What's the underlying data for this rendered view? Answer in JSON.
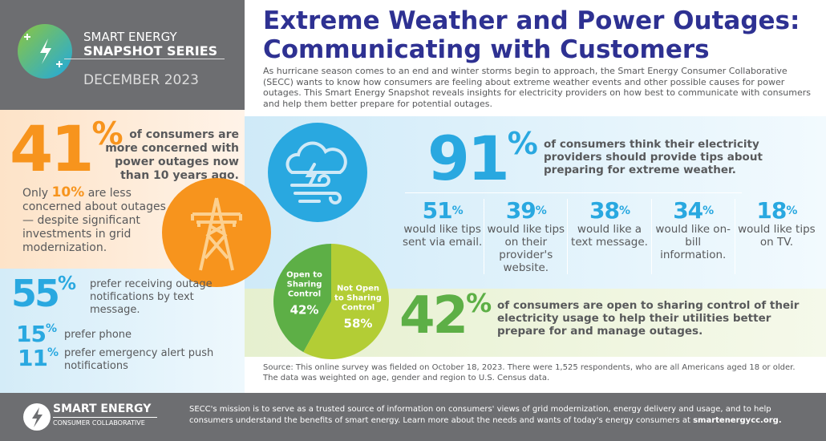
{
  "brand": {
    "line1": "SMART ENERGY",
    "line2": "SNAPSHOT SERIES",
    "date": "DECEMBER 2023"
  },
  "header": {
    "title_line1": "Extreme Weather and Power Outages:",
    "title_line2": "Communicating with Customers",
    "intro": "As hurricane season comes to an end and winter storms begin to approach, the Smart Energy Consumer Collaborative (SECC) wants to know how consumers are feeling about extreme weather events and other possible causes for power outages. This Smart Energy Snapshot reveals insights for electricity providers on how best to communicate with consumers and help them better prepare for potential outages."
  },
  "stat41": {
    "value": "41",
    "unit": "%",
    "text": "of consumers are more concerned with power outages now than 10 years ago.",
    "only": "Only",
    "value10": "10%",
    "rest": "are less concerned about outages — despite significant investments in grid modernization."
  },
  "notify": [
    {
      "value": "55",
      "unit": "%",
      "text": "prefer receiving outage notifications by text message."
    },
    {
      "value": "15",
      "unit": "%",
      "text": "prefer phone"
    },
    {
      "value": "11",
      "unit": "%",
      "text": "prefer emergency alert push notifications"
    }
  ],
  "stat91": {
    "value": "91",
    "unit": "%",
    "text": "of consumers think their electricity providers should provide tips about preparing for extreme weather."
  },
  "tips": [
    {
      "value": "51",
      "unit": "%",
      "text": "would like tips sent via email."
    },
    {
      "value": "39",
      "unit": "%",
      "text": "would like tips on their provider's website."
    },
    {
      "value": "38",
      "unit": "%",
      "text": "would like a text message."
    },
    {
      "value": "34",
      "unit": "%",
      "text": "would like on-bill information."
    },
    {
      "value": "18",
      "unit": "%",
      "text": "would like tips on TV."
    }
  ],
  "chart_data": {
    "type": "pie",
    "categories": [
      "Open to Sharing Control",
      "Not Open to Sharing Control"
    ],
    "values": [
      42,
      58
    ],
    "labels": [
      "42%",
      "58%"
    ],
    "colors": [
      "#5daf46",
      "#b3cd35"
    ]
  },
  "stat42": {
    "value": "42",
    "unit": "%",
    "text": "of consumers are open to sharing control of their electricity usage to help their utilities better prepare for and manage outages."
  },
  "source": "Source: This online survey was fielded on October 18, 2023. There were 1,525 respondents, who are all Americans aged 18 or older. The data was weighted on age, gender and region to U.S. Census data.",
  "footer": {
    "logo_line1": "SMART ENERGY",
    "logo_line2": "CONSUMER COLLABORATIVE",
    "mission": "SECC's mission is to serve as a trusted source of information on consumers' views of grid modernization, energy delivery and usage, and to help consumers understand the benefits of smart energy. Learn more about the needs and wants of today's energy consumers at",
    "link": "smartenergycc.org."
  },
  "colors": {
    "orange": "#f7941d",
    "blue": "#29a8e0",
    "green": "#5daf46",
    "navy": "#2e3192",
    "gray": "#6d6e71"
  }
}
